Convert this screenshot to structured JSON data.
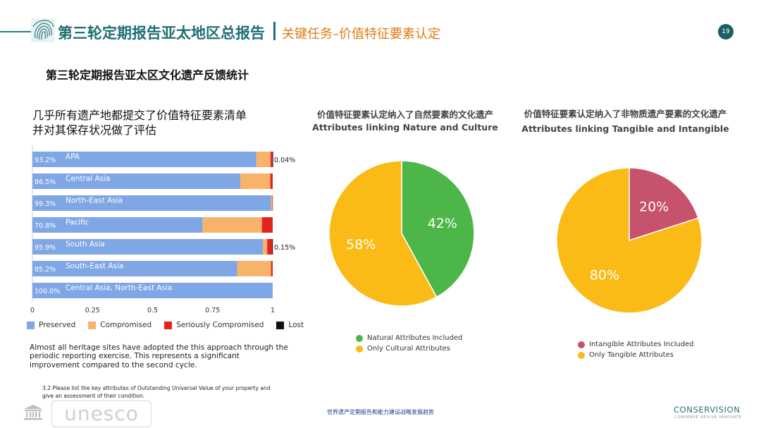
{
  "header": {
    "title": "第三轮定期报告亚太地区总报告",
    "subtitle": "关键任务–价值特征要素认定",
    "page_number": "19"
  },
  "section_title": "第三轮定期报告亚太区文化遗产反馈统计",
  "left_panel": {
    "heading_line1": "几乎所有遗产地都提交了价值特征要素清单",
    "heading_line2": "并对其保存状况做了评估",
    "paragraph": "Almost all heritage sites have adopted the this approach through the periodic reporting exercise.  This represents a significant improvement compared to the second cycle.",
    "question_note": "3.2 Please list the key attributes of Outstanding Universal Value of your property and give an assessment of their condition."
  },
  "colors": {
    "preserved": "#7fa6e5",
    "compromised": "#f8b36b",
    "seriously_compromised": "#e4241c",
    "lost": "#111111",
    "natural": "#4cb748",
    "cultural": "#fbbb16",
    "intangible": "#c7526b",
    "tangible": "#fbbb16",
    "teal": "#1f6f74"
  },
  "chart_data": [
    {
      "type": "bar",
      "stacked": true,
      "orientation": "horizontal",
      "categories": [
        "APA",
        "Central Asia",
        "North-East Asia",
        "Pacific",
        "South Asia",
        "South-East Asia",
        "Central Asia, North-East Asia"
      ],
      "category_value_labels": [
        "93.2%",
        "86.5%",
        "99.3%",
        "70.8%",
        "95.9%",
        "85.2%",
        "100.0%"
      ],
      "series": [
        {
          "name": "Preserved",
          "values": [
            0.932,
            0.865,
            0.993,
            0.708,
            0.959,
            0.852,
            1.0
          ]
        },
        {
          "name": "Compromised",
          "values": [
            0.059,
            0.125,
            0.005,
            0.247,
            0.018,
            0.141,
            0.0
          ]
        },
        {
          "name": "Seriously Compromised",
          "values": [
            0.0086,
            0.01,
            0.002,
            0.045,
            0.0215,
            0.007,
            0.0
          ]
        },
        {
          "name": "Lost",
          "values": [
            0.0004,
            0.0,
            0.0,
            0.0,
            0.0015,
            0.0,
            0.0
          ]
        }
      ],
      "annotations": [
        "0.04%",
        "",
        "",
        "",
        "0.15%",
        "",
        ""
      ],
      "xlim": [
        0,
        1
      ],
      "xticks": [
        "0",
        "0.25",
        "0.5",
        "0.75",
        "1"
      ],
      "legend": [
        "Preserved",
        "Compromised",
        "Seriously Compromised",
        "Lost"
      ],
      "legend_position": "bottom"
    },
    {
      "type": "pie",
      "title": "价值特征要素认定纳入了自然要素的文化遗产",
      "subtitle": "Attributes linking Nature and Culture",
      "labels": [
        "Natural Attributes Included",
        "Only Cultural Attributes"
      ],
      "values": [
        42,
        58
      ],
      "value_labels": [
        "42%",
        "58%"
      ],
      "legend_position": "bottom"
    },
    {
      "type": "pie",
      "title": "价值特征要素认定纳入了非物质遗产要素的文化遗产",
      "subtitle": "Attributes linking Tangible and Intangible",
      "labels": [
        "Intangible Attributes Included",
        "Only Tangible Attributes"
      ],
      "values": [
        20,
        80
      ],
      "value_labels": [
        "20%",
        "80%"
      ],
      "legend_position": "bottom"
    }
  ],
  "footer": {
    "unesco_text": "unesco",
    "center_text": "世界遗产定期报告和能力建设战略发展趋势",
    "brand": "CONSERVISION",
    "tagline": "CONSERVE  REVIVE  INNOVATE"
  }
}
